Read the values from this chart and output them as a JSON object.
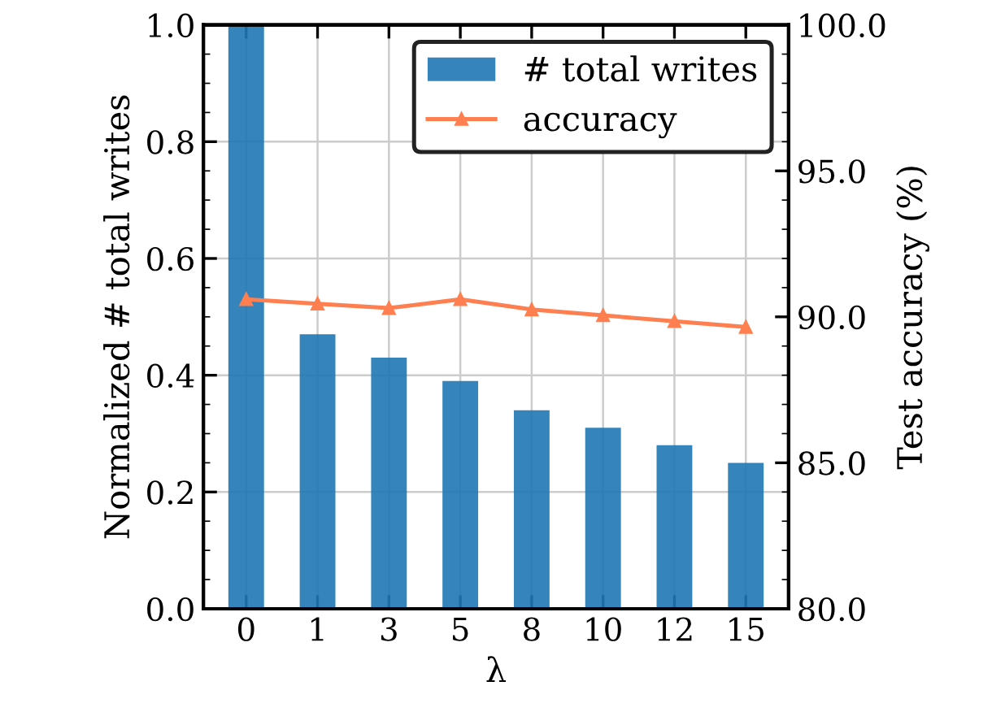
{
  "chart_data": {
    "type": "bar",
    "xlabel": "λ",
    "ylabel": "Normalized # total writes",
    "y2label": "Test accuracy (%)",
    "categories": [
      "0",
      "1",
      "3",
      "5",
      "8",
      "10",
      "12",
      "15"
    ],
    "series": [
      {
        "name": "# total writes",
        "color": "#1f77b4",
        "values": [
          1.0,
          0.47,
          0.43,
          0.39,
          0.34,
          0.31,
          0.28,
          0.25
        ]
      },
      {
        "name": "accuracy",
        "type": "line",
        "axis": "y2",
        "color": "#ff7f50",
        "marker": "triangle",
        "values": [
          90.6,
          90.45,
          90.3,
          90.6,
          90.25,
          90.05,
          89.85,
          89.65
        ]
      }
    ],
    "ylim": [
      0,
      1
    ],
    "yticks": [
      {
        "value": 0,
        "label": "0.0"
      },
      {
        "value": 0.2,
        "label": "0.2"
      },
      {
        "value": 0.4,
        "label": "0.4"
      },
      {
        "value": 0.6,
        "label": "0.6"
      },
      {
        "value": 0.8,
        "label": "0.8"
      },
      {
        "value": 1,
        "label": "1.0"
      }
    ],
    "y2lim": [
      80,
      100
    ],
    "y2ticks": [
      {
        "value": 80,
        "label": "80.0"
      },
      {
        "value": 85,
        "label": "85.0"
      },
      {
        "value": 90,
        "label": "90.0"
      },
      {
        "value": 95,
        "label": "95.0"
      },
      {
        "value": 100,
        "label": "100.0"
      }
    ],
    "grid": true,
    "legend": "top right"
  }
}
